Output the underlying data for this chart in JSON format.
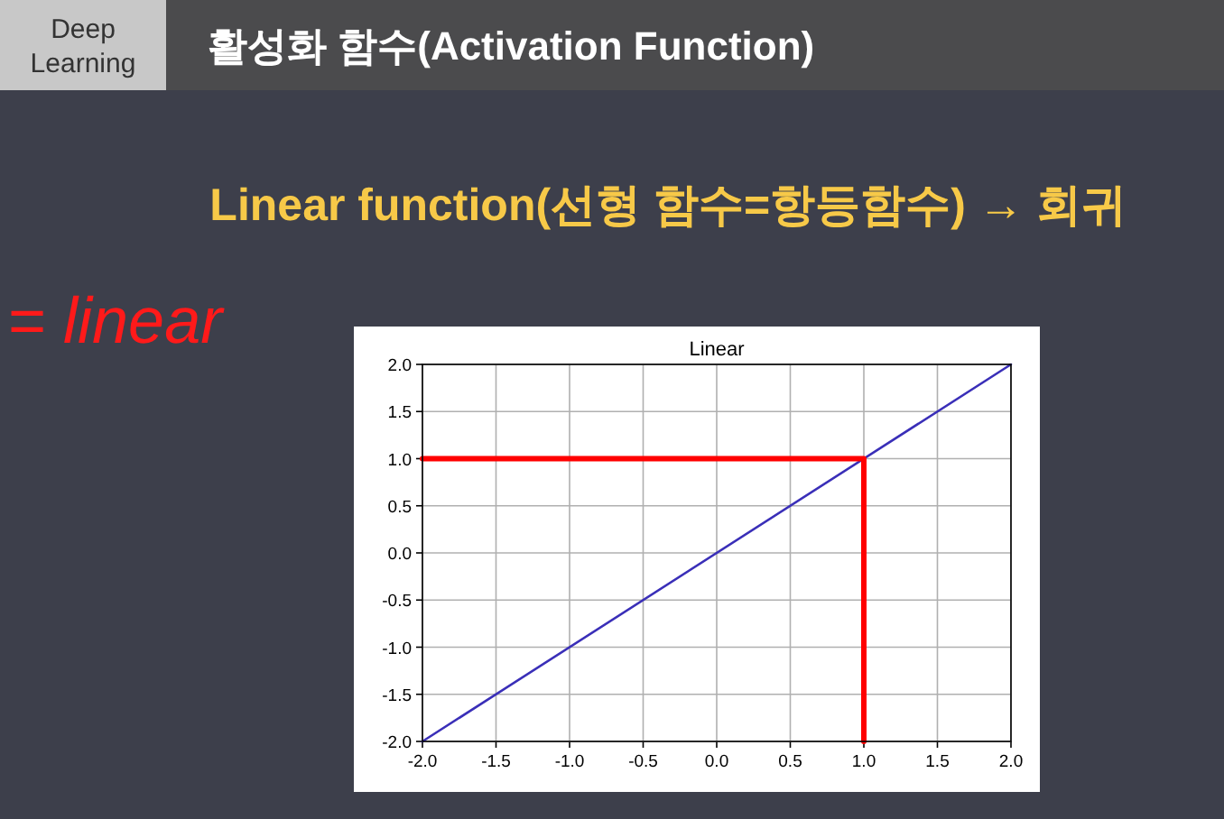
{
  "chart_data": {
    "type": "line",
    "title": "Linear",
    "xlim": [
      -2,
      2
    ],
    "ylim": [
      -2,
      2
    ],
    "xticks": [
      {
        "value": -2,
        "label": "-2.0"
      },
      {
        "value": -1.5,
        "label": "-1.5"
      },
      {
        "value": -1,
        "label": "-1.0"
      },
      {
        "value": -0.5,
        "label": "-0.5"
      },
      {
        "value": 0,
        "label": "0.0"
      },
      {
        "value": 0.5,
        "label": "0.5"
      },
      {
        "value": 1,
        "label": "1.0"
      },
      {
        "value": 1.5,
        "label": "1.5"
      },
      {
        "value": 2,
        "label": "2.0"
      }
    ],
    "yticks": [
      {
        "value": -2,
        "label": "-2.0"
      },
      {
        "value": -1.5,
        "label": "-1.5"
      },
      {
        "value": -1,
        "label": "-1.0"
      },
      {
        "value": -0.5,
        "label": "-0.5"
      },
      {
        "value": 0,
        "label": "0.0"
      },
      {
        "value": 0.5,
        "label": "0.5"
      },
      {
        "value": 1,
        "label": "1.0"
      },
      {
        "value": 1.5,
        "label": "1.5"
      },
      {
        "value": 2,
        "label": "2.0"
      }
    ],
    "grid": true,
    "series": [
      {
        "color": "#3a2fb8",
        "x": [
          -2,
          2
        ],
        "values": [
          -2,
          2
        ]
      },
      {
        "color": "#ff0000",
        "x": [
          -2,
          1,
          1
        ],
        "values": [
          1,
          1,
          -2
        ]
      }
    ],
    "annotations": [
      "Deep Learning",
      "활성화 함수(Activation Function)",
      "Linear function(선형 함수=항등함수) → 회귀",
      "= linear"
    ]
  }
}
